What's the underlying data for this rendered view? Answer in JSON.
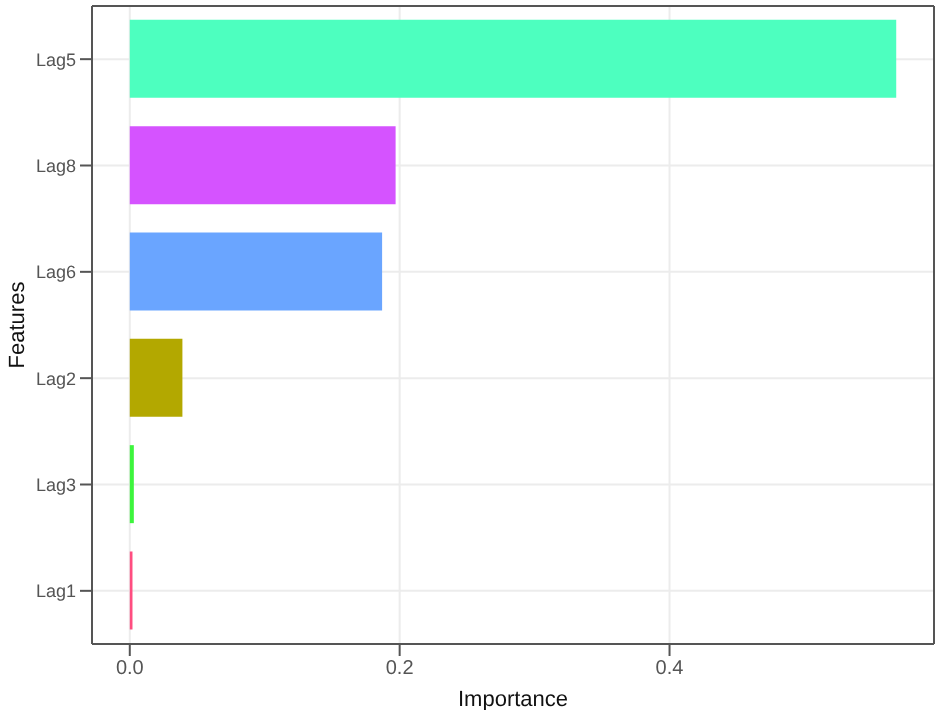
{
  "chart_data": {
    "type": "bar",
    "orientation": "horizontal",
    "xlabel": "Importance",
    "ylabel": "Features",
    "categories": [
      "Lag5",
      "Lag8",
      "Lag6",
      "Lag2",
      "Lag3",
      "Lag1"
    ],
    "values": [
      0.568,
      0.197,
      0.187,
      0.039,
      0.003,
      0.002
    ],
    "colors": [
      "#4dffbf",
      "#d553ff",
      "#6aa5ff",
      "#b3a800",
      "#3df53d",
      "#ff4d80"
    ],
    "xlim": [
      -0.028,
      0.596
    ],
    "xticks": [
      {
        "value": 0,
        "label": "0.0"
      },
      {
        "value": 0.2,
        "label": "0.2"
      },
      {
        "value": 0.4,
        "label": "0.4"
      }
    ],
    "grid": true
  }
}
